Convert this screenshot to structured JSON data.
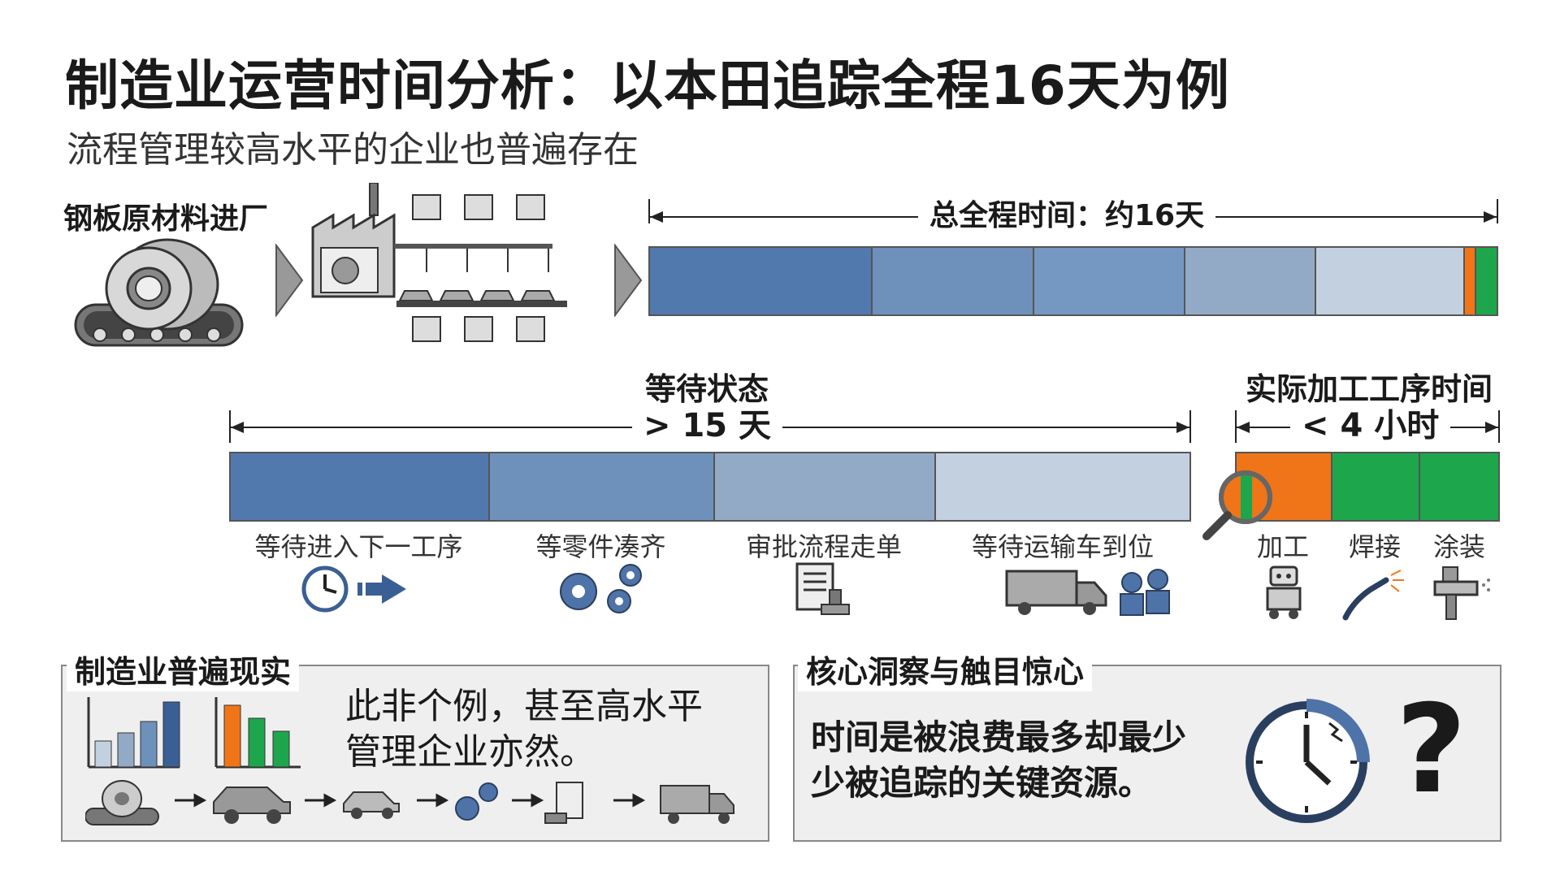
{
  "header": {
    "title": "制造业运营时间分析：以本田追踪全程16天为例",
    "subtitle": "流程管理较高水平的企业也普遍存在"
  },
  "flow": {
    "steel_label": "钢板原材料进厂",
    "total_label": "总全程时间：约16天"
  },
  "waiting": {
    "title": "等待状态",
    "duration": "> 15 天",
    "segments": [
      {
        "label": "等待进入下一工序",
        "color": "#5279ad"
      },
      {
        "label": "等零件凑齐",
        "color": "#6e91bb"
      },
      {
        "label": "审批流程走单",
        "color": "#93aac6"
      },
      {
        "label": "等待运输车到位",
        "color": "#c3d0df"
      }
    ]
  },
  "processing": {
    "title": "实际加工工序时间",
    "duration": "< 4 小时",
    "segments": [
      {
        "label": "加工",
        "color": "#f07518"
      },
      {
        "label": "焊接",
        "color": "#1ea64c"
      },
      {
        "label": "涂装",
        "color": "#1ea64c"
      }
    ]
  },
  "top_bar_colors": [
    "#5279ad",
    "#6e91bb",
    "#7598c2",
    "#93aac6",
    "#c3d0df",
    "#f07518",
    "#1ea64c"
  ],
  "panel_left": {
    "title": "制造业普遍现实",
    "text_line1": "此非个例，甚至高水平",
    "text_line2": "管理企业亦然。"
  },
  "panel_right": {
    "title": "核心洞察与触目惊心",
    "text_line1": "时间是被浪费最多却最少",
    "text_line2": "少被追踪的关键资源。",
    "question_mark": "?"
  }
}
